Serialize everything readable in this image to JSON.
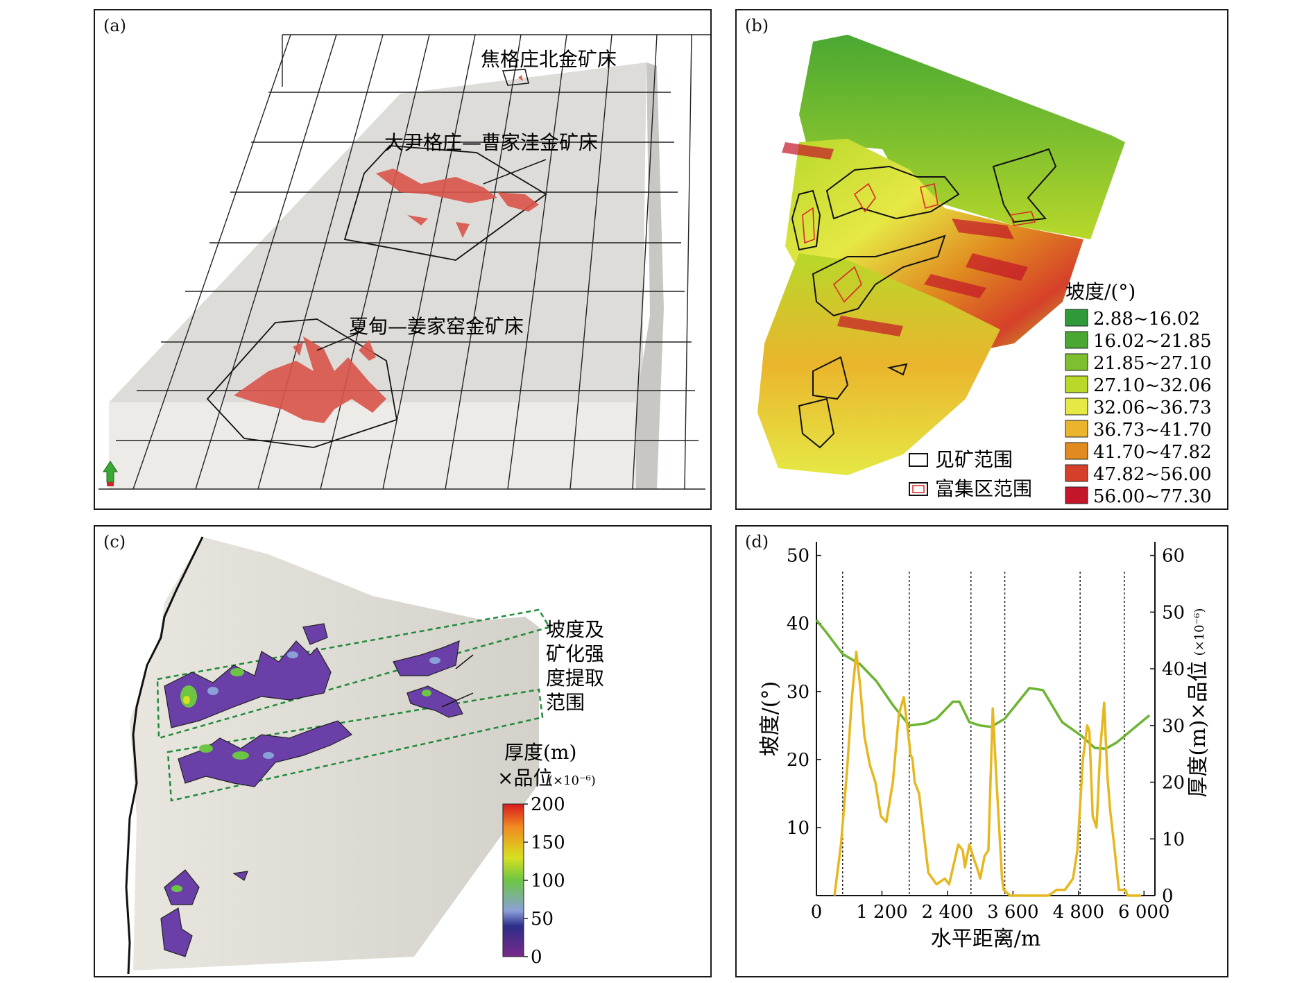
{
  "panel_a": {
    "label": "(a)",
    "deposits": [
      {
        "name": "焦格庄北金矿床"
      },
      {
        "name": "大尹格庄—曹家洼金矿床"
      },
      {
        "name": "夏甸—姜家窑金矿床"
      }
    ]
  },
  "panel_b": {
    "label": "(b)",
    "legend_title": "坡度/(°)",
    "classes": [
      {
        "range": "2.88~16.02",
        "color": "#2f9a3a"
      },
      {
        "range": "16.02~21.85",
        "color": "#4aa832"
      },
      {
        "range": "21.85~27.10",
        "color": "#7dbf2f"
      },
      {
        "range": "27.10~32.06",
        "color": "#b8d82a"
      },
      {
        "range": "32.06~36.73",
        "color": "#e6e845"
      },
      {
        "range": "36.73~41.70",
        "color": "#eab52c"
      },
      {
        "range": "41.70~47.82",
        "color": "#e08a1f"
      },
      {
        "range": "47.82~56.00",
        "color": "#d6402a"
      },
      {
        "range": "56.00~77.30",
        "color": "#c4152a"
      }
    ],
    "boundary_legend": [
      {
        "label": "见矿范围",
        "color": "#111111"
      },
      {
        "label": "富集区范围",
        "color": "#d62828"
      }
    ]
  },
  "panel_c": {
    "label": "(c)",
    "annotation_lines": [
      "坡度及",
      "矿化强",
      "度提取",
      "范围"
    ],
    "colorbar_title_1": "厚度(m)",
    "colorbar_title_2": "×品位",
    "colorbar_unit": "(×10⁻⁶)",
    "colorbar_ticks": [
      "200",
      "150",
      "100",
      "50",
      "0"
    ]
  },
  "chart_data": {
    "type": "line",
    "label": "(d)",
    "xlabel": "水平距离/m",
    "ylabel_left": "坡度/(°)",
    "ylabel_right_main": "厚度(m)×品位",
    "ylabel_right_unit": "(×10⁻⁶)",
    "xlim": [
      0,
      6200
    ],
    "ylim_left": [
      0,
      52
    ],
    "ylim_right": [
      0,
      62.4
    ],
    "x_ticks": [
      0,
      1200,
      2400,
      3600,
      4800,
      6000
    ],
    "x_tick_labels": [
      "0",
      "1 200",
      "2 400",
      "3 600",
      "4 800",
      "6 000"
    ],
    "y_left_ticks": [
      10,
      20,
      30,
      40,
      50
    ],
    "y_left_tick_labels": [
      "10",
      "20",
      "30",
      "40",
      "50"
    ],
    "y_right_ticks": [
      0,
      10,
      20,
      30,
      40,
      50,
      60
    ],
    "y_right_tick_labels": [
      "0",
      "10",
      "20",
      "30",
      "40",
      "50",
      "60"
    ],
    "vlines": [
      480,
      1700,
      2830,
      3450,
      4830,
      5640
    ],
    "series": [
      {
        "name": "坡度",
        "axis": "left",
        "color": "#6cb432",
        "x": [
          0,
          200,
          480,
          800,
          1100,
          1400,
          1700,
          2000,
          2200,
          2500,
          2620,
          2800,
          3000,
          3200,
          3450,
          3700,
          3900,
          4150,
          4500,
          4850,
          5100,
          5300,
          5500,
          5800,
          6100
        ],
        "y": [
          40.5,
          38.5,
          35.5,
          34,
          31.5,
          28,
          25,
          25.3,
          26,
          28.5,
          28.5,
          25.5,
          25,
          24.8,
          26,
          28.5,
          30.5,
          30.2,
          25.5,
          23.5,
          21.7,
          21.6,
          22.5,
          24.5,
          26.5
        ]
      },
      {
        "name": "厚度×品位",
        "axis": "right",
        "color": "#e6b71e",
        "x": [
          330,
          450,
          560,
          650,
          730,
          800,
          880,
          980,
          1080,
          1180,
          1280,
          1400,
          1510,
          1600,
          1700,
          1720,
          1760,
          1800,
          1880,
          2050,
          2200,
          2350,
          2430,
          2550,
          2600,
          2680,
          2720,
          2800,
          2900,
          2940,
          3000,
          3080,
          3150,
          3230,
          3300,
          3400,
          3430,
          3550,
          3700,
          3800,
          3900,
          4000,
          4100,
          4250,
          4400,
          4550,
          4700,
          4780,
          4850,
          4880,
          4960,
          5000,
          5060,
          5130,
          5200,
          5270,
          5330,
          5380,
          5440,
          5540,
          5630,
          5660,
          5700,
          5950
        ],
        "y": [
          0,
          9,
          22,
          35,
          43,
          37,
          28,
          23,
          20,
          14,
          13,
          20,
          32,
          35,
          27,
          25,
          24,
          20,
          18,
          4,
          2,
          3,
          2,
          7,
          9,
          8,
          5,
          9,
          6,
          5,
          3,
          7,
          8,
          33,
          20,
          3,
          1,
          0,
          0,
          0,
          0,
          0,
          0,
          0,
          1,
          1,
          3,
          8,
          19,
          24,
          30,
          29,
          14,
          12,
          26,
          34,
          21,
          15,
          10,
          1,
          1,
          1,
          0,
          0
        ]
      }
    ]
  }
}
